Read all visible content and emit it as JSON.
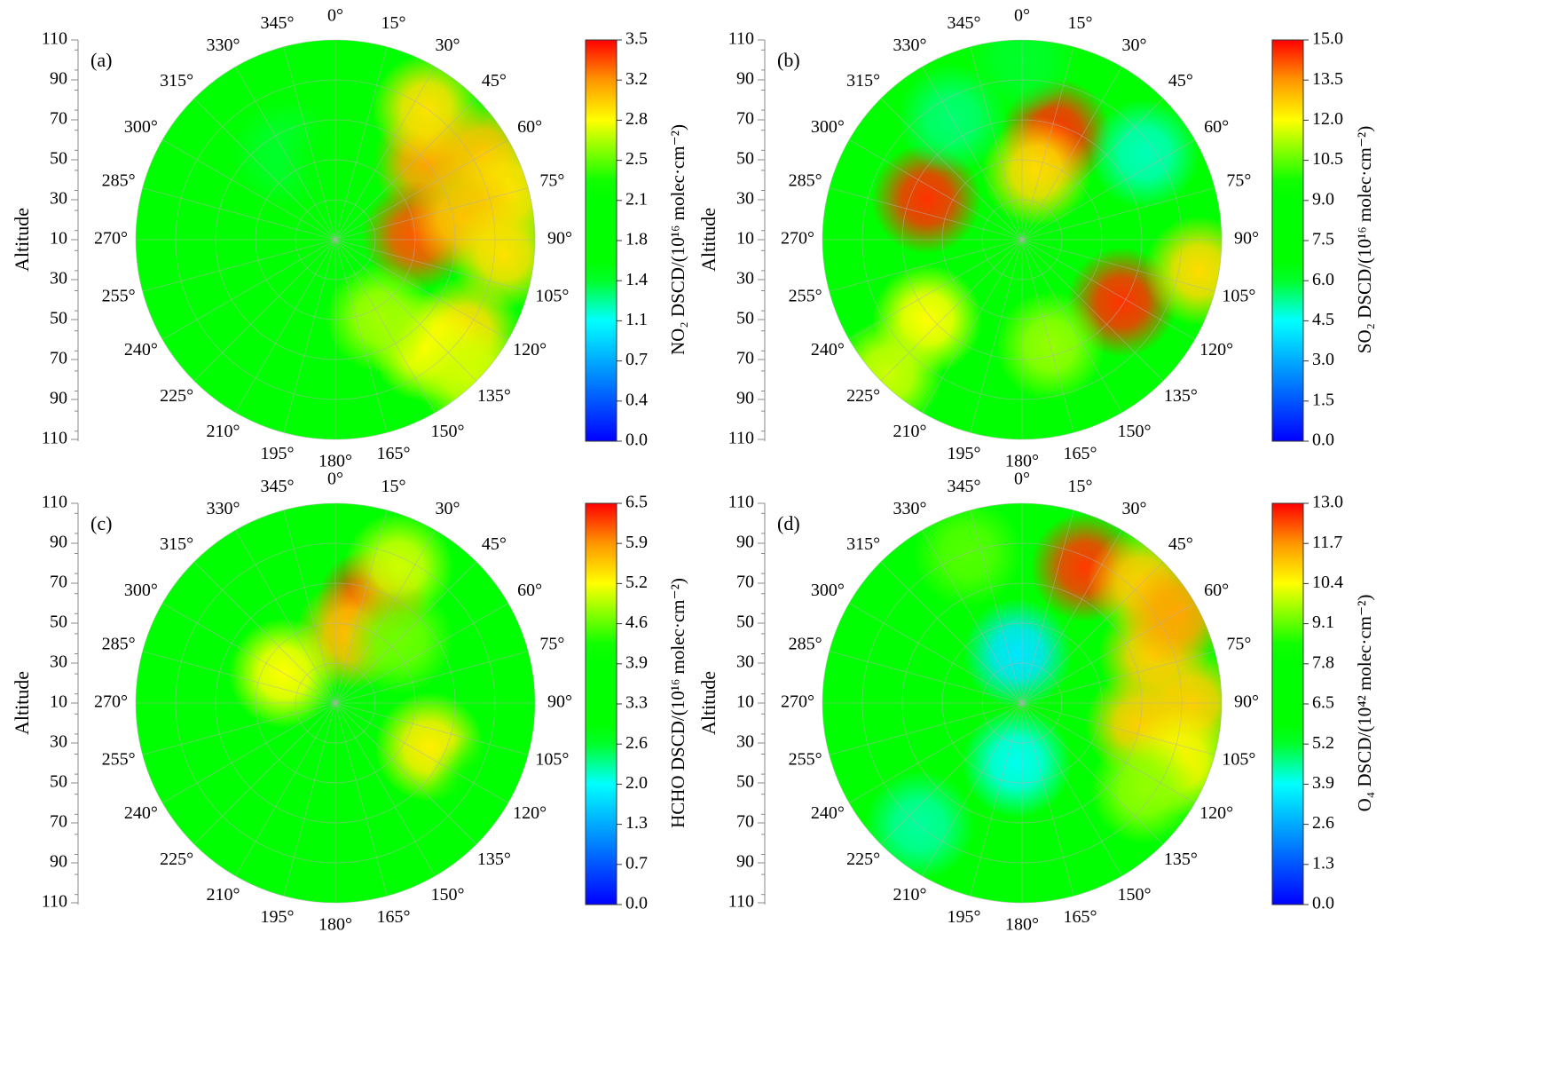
{
  "chart_data": [
    {
      "type": "polar-contour",
      "panel_label": "(a)",
      "r_label": "Altitude",
      "colorbar_label": "NO₂ DSCD/(10¹⁶ molec·cm⁻²)",
      "rlim": [
        10,
        110
      ],
      "rticks": [
        110,
        90,
        70,
        50,
        30,
        10
      ],
      "angle_ticks": [
        {
          "value": 0,
          "label": "0°"
        },
        {
          "value": 15,
          "label": "15°"
        },
        {
          "value": 30,
          "label": "30°"
        },
        {
          "value": 45,
          "label": "45°"
        },
        {
          "value": 60,
          "label": "60°"
        },
        {
          "value": 75,
          "label": "75°"
        },
        {
          "value": 90,
          "label": "90°"
        },
        {
          "value": 105,
          "label": "105°"
        },
        {
          "value": 120,
          "label": "120°"
        },
        {
          "value": 135,
          "label": "135°"
        },
        {
          "value": 150,
          "label": "150°"
        },
        {
          "value": 165,
          "label": "165°"
        },
        {
          "value": 180,
          "label": "180°"
        },
        {
          "value": 195,
          "label": "195°"
        },
        {
          "value": 210,
          "label": "210°"
        },
        {
          "value": 225,
          "label": "225°"
        },
        {
          "value": 240,
          "label": "240°"
        },
        {
          "value": 255,
          "label": "255°"
        },
        {
          "value": 270,
          "label": "270°"
        },
        {
          "value": 285,
          "label": "285°"
        },
        {
          "value": 300,
          "label": "300°"
        },
        {
          "value": 315,
          "label": "315°"
        },
        {
          "value": 330,
          "label": "330°"
        },
        {
          "value": 345,
          "label": "345°"
        }
      ],
      "clim": [
        0,
        3.5
      ],
      "cticks": [
        {
          "value": 0,
          "label": "0.0"
        },
        {
          "value": 0.35,
          "label": "0.4"
        },
        0.7,
        {
          "value": 1.05,
          "label": "1.1"
        },
        1.4,
        {
          "value": 1.75,
          "label": "1.8"
        },
        2.1,
        {
          "value": 2.45,
          "label": "2.5"
        },
        2.8,
        {
          "value": 3.15,
          "label": "3.2"
        },
        3.5
      ],
      "base_value": 1.9,
      "x": [
        50,
        35,
        60,
        75,
        87,
        80,
        95,
        125,
        140,
        150,
        135,
        330,
        0,
        250
      ],
      "y": [
        70,
        90,
        95,
        100,
        51,
        75,
        95,
        90,
        80,
        55,
        105,
        60,
        50,
        60
      ],
      "values": [
        3.1,
        2.9,
        3.0,
        2.9,
        3.3,
        3.0,
        2.9,
        2.9,
        2.8,
        2.6,
        2.7,
        1.4,
        1.5,
        1.5
      ]
    },
    {
      "type": "polar-contour",
      "panel_label": "(b)",
      "r_label": "Altitude",
      "colorbar_label": "SO₂ DSCD/(10¹⁶ molec·cm⁻²)",
      "rlim": [
        10,
        110
      ],
      "rticks": [
        110,
        90,
        70,
        50,
        30,
        10
      ],
      "angle_ticks": [
        {
          "value": 0,
          "label": "0°"
        },
        {
          "value": 15,
          "label": "15°"
        },
        {
          "value": 30,
          "label": "30°"
        },
        {
          "value": 45,
          "label": "45°"
        },
        {
          "value": 60,
          "label": "60°"
        },
        {
          "value": 75,
          "label": "75°"
        },
        {
          "value": 90,
          "label": "90°"
        },
        {
          "value": 105,
          "label": "105°"
        },
        {
          "value": 120,
          "label": "120°"
        },
        {
          "value": 135,
          "label": "135°"
        },
        {
          "value": 150,
          "label": "150°"
        },
        {
          "value": 165,
          "label": "165°"
        },
        {
          "value": 180,
          "label": "180°"
        },
        {
          "value": 195,
          "label": "195°"
        },
        {
          "value": 210,
          "label": "210°"
        },
        {
          "value": 225,
          "label": "225°"
        },
        {
          "value": 240,
          "label": "240°"
        },
        {
          "value": 255,
          "label": "255°"
        },
        {
          "value": 270,
          "label": "270°"
        },
        {
          "value": 285,
          "label": "285°"
        },
        {
          "value": 300,
          "label": "300°"
        },
        {
          "value": 315,
          "label": "315°"
        },
        {
          "value": 330,
          "label": "330°"
        },
        {
          "value": 345,
          "label": "345°"
        }
      ],
      "clim": [
        0,
        15
      ],
      "cticks": [
        {
          "value": 0,
          "label": "0.0"
        },
        1.5,
        {
          "value": 3,
          "label": "3.0"
        },
        4.5,
        {
          "value": 6,
          "label": "6.0"
        },
        7.5,
        {
          "value": 9,
          "label": "9.0"
        },
        10.5,
        {
          "value": 12,
          "label": "12.0"
        },
        13.5,
        {
          "value": 15,
          "label": "15.0"
        }
      ],
      "base_value": 7.5,
      "x": [
        18,
        12,
        293,
        122,
        230,
        165,
        55,
        330,
        0,
        100,
        225
      ],
      "y": [
        66,
        45,
        62,
        69,
        72,
        65,
        85,
        80,
        100,
        100,
        105
      ],
      "values": [
        14.5,
        12.5,
        14.5,
        14.5,
        12.0,
        11.0,
        5.0,
        5.5,
        6.0,
        12.5,
        11.5
      ]
    },
    {
      "type": "polar-contour",
      "panel_label": "(c)",
      "r_label": "Altitude",
      "colorbar_label": "HCHO DSCD/(10¹⁶ molec·cm⁻²)",
      "rlim": [
        10,
        110
      ],
      "rticks": [
        110,
        90,
        70,
        50,
        30,
        10
      ],
      "angle_ticks": [
        {
          "value": 0,
          "label": "0°"
        },
        {
          "value": 15,
          "label": "15°"
        },
        {
          "value": 30,
          "label": "30°"
        },
        {
          "value": 45,
          "label": "45°"
        },
        {
          "value": 60,
          "label": "60°"
        },
        {
          "value": 75,
          "label": "75°"
        },
        {
          "value": 90,
          "label": "90°"
        },
        {
          "value": 105,
          "label": "105°"
        },
        {
          "value": 120,
          "label": "120°"
        },
        {
          "value": 135,
          "label": "135°"
        },
        {
          "value": 150,
          "label": "150°"
        },
        {
          "value": 165,
          "label": "165°"
        },
        {
          "value": 180,
          "label": "180°"
        },
        {
          "value": 195,
          "label": "195°"
        },
        {
          "value": 210,
          "label": "210°"
        },
        {
          "value": 225,
          "label": "225°"
        },
        {
          "value": 240,
          "label": "240°"
        },
        {
          "value": 255,
          "label": "255°"
        },
        {
          "value": 270,
          "label": "270°"
        },
        {
          "value": 285,
          "label": "285°"
        },
        {
          "value": 300,
          "label": "300°"
        },
        {
          "value": 315,
          "label": "315°"
        },
        {
          "value": 330,
          "label": "330°"
        },
        {
          "value": 345,
          "label": "345°"
        }
      ],
      "clim": [
        0,
        6.5
      ],
      "cticks": [
        {
          "value": 0,
          "label": "0.0"
        },
        {
          "value": 0.65,
          "label": "0.7"
        },
        1.3,
        {
          "value": 1.95,
          "label": "2.0"
        },
        2.6,
        {
          "value": 3.25,
          "label": "3.3"
        },
        3.9,
        {
          "value": 4.55,
          "label": "4.6"
        },
        5.2,
        {
          "value": 5.85,
          "label": "5.9"
        },
        6.5
      ],
      "base_value": 3.6,
      "x": [
        20,
        12,
        25,
        300,
        115,
        45,
        250,
        120,
        300
      ],
      "y": [
        63,
        45,
        85,
        40,
        62,
        55,
        90,
        95,
        95
      ],
      "values": [
        6.3,
        5.6,
        5.0,
        5.2,
        5.3,
        4.6,
        2.8,
        2.8,
        2.9
      ]
    },
    {
      "type": "polar-contour",
      "panel_label": "(d)",
      "r_label": "Altitude",
      "colorbar_label": "O₄ DSCD/(10⁴² molec·cm⁻²)",
      "rlim": [
        10,
        110
      ],
      "rticks": [
        110,
        90,
        70,
        50,
        30,
        10
      ],
      "angle_ticks": [
        {
          "value": 0,
          "label": "0°"
        },
        {
          "value": 15,
          "label": "15°"
        },
        {
          "value": 30,
          "label": "30°"
        },
        {
          "value": 45,
          "label": "45°"
        },
        {
          "value": 60,
          "label": "60°"
        },
        {
          "value": 75,
          "label": "75°"
        },
        {
          "value": 90,
          "label": "90°"
        },
        {
          "value": 105,
          "label": "105°"
        },
        {
          "value": 120,
          "label": "120°"
        },
        {
          "value": 135,
          "label": "135°"
        },
        {
          "value": 150,
          "label": "150°"
        },
        {
          "value": 165,
          "label": "165°"
        },
        {
          "value": 180,
          "label": "180°"
        },
        {
          "value": 195,
          "label": "195°"
        },
        {
          "value": 210,
          "label": "210°"
        },
        {
          "value": 225,
          "label": "225°"
        },
        {
          "value": 240,
          "label": "240°"
        },
        {
          "value": 255,
          "label": "255°"
        },
        {
          "value": 270,
          "label": "270°"
        },
        {
          "value": 285,
          "label": "285°"
        },
        {
          "value": 300,
          "label": "300°"
        },
        {
          "value": 315,
          "label": "315°"
        },
        {
          "value": 330,
          "label": "330°"
        },
        {
          "value": 345,
          "label": "345°"
        }
      ],
      "clim": [
        0,
        13
      ],
      "cticks": [
        {
          "value": 0,
          "label": "0.0"
        },
        1.3,
        2.6,
        3.9,
        5.2,
        6.5,
        7.8,
        9.1,
        10.4,
        11.7,
        {
          "value": 13,
          "label": "13.0"
        }
      ],
      "base_value": 6.5,
      "x": [
        25,
        45,
        70,
        60,
        100,
        90,
        110,
        125,
        355,
        185,
        220,
        340
      ],
      "y": [
        85,
        95,
        80,
        100,
        70,
        95,
        95,
        85,
        35,
        40,
        90,
        90
      ],
      "values": [
        12.5,
        11.0,
        11.0,
        11.5,
        11.0,
        11.0,
        10.5,
        9.5,
        3.5,
        4.0,
        4.5,
        9.0
      ]
    }
  ]
}
